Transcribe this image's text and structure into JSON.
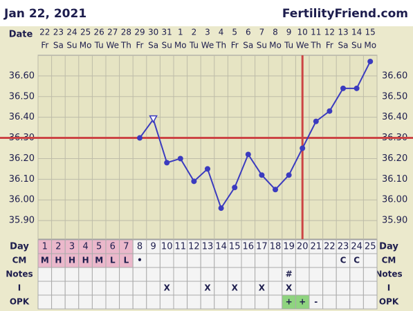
{
  "header": {
    "date": "Jan 22, 2021",
    "site": "FertilityFriend.com"
  },
  "chart_data": {
    "type": "line",
    "date_label": "Date",
    "dates": [
      "22",
      "23",
      "24",
      "25",
      "26",
      "27",
      "28",
      "29",
      "30",
      "31",
      "1",
      "2",
      "3",
      "4",
      "5",
      "6",
      "7",
      "8",
      "9",
      "10",
      "11",
      "12",
      "13",
      "14",
      "15"
    ],
    "weekdays": [
      "Fr",
      "Sa",
      "Su",
      "Mo",
      "Tu",
      "We",
      "Th",
      "Fr",
      "Sa",
      "Su",
      "Mo",
      "Tu",
      "We",
      "Th",
      "Fr",
      "Sa",
      "Su",
      "Mo",
      "Tu",
      "We",
      "Th",
      "Fr",
      "Sa",
      "Su",
      "Mo"
    ],
    "day_label": "Day",
    "categories": [
      "1",
      "2",
      "3",
      "4",
      "5",
      "6",
      "7",
      "8",
      "9",
      "10",
      "11",
      "12",
      "13",
      "14",
      "15",
      "16",
      "17",
      "18",
      "19",
      "20",
      "21",
      "22",
      "23",
      "24",
      "25"
    ],
    "series": [
      {
        "color": "#3b3bbf",
        "values": [
          null,
          null,
          null,
          null,
          null,
          null,
          null,
          36.3,
          36.39,
          36.18,
          36.2,
          36.09,
          36.15,
          35.96,
          36.06,
          36.22,
          36.12,
          36.05,
          36.12,
          36.25,
          36.38,
          36.43,
          36.54,
          36.54,
          36.67
        ],
        "markers": [
          null,
          null,
          null,
          null,
          null,
          null,
          null,
          "circle",
          "triangle",
          "circle",
          "circle",
          "circle",
          "circle",
          "circle",
          "circle",
          "circle",
          "circle",
          "circle",
          "circle",
          "circle",
          "circle",
          "circle",
          "circle",
          "circle",
          "circle"
        ]
      }
    ],
    "ylim": [
      35.81,
      36.7
    ],
    "yticks": [
      {
        "value": 35.9,
        "label": "35.90"
      },
      {
        "value": 36.0,
        "label": "36.00"
      },
      {
        "value": 36.1,
        "label": "36.10"
      },
      {
        "value": 36.2,
        "label": "36.20"
      },
      {
        "value": 36.3,
        "label": "36.30"
      },
      {
        "value": 36.4,
        "label": "36.40"
      },
      {
        "value": 36.5,
        "label": "36.50"
      },
      {
        "value": 36.6,
        "label": "36.60"
      }
    ],
    "grid": true,
    "coverline": 36.3,
    "vertical_line_day": 20,
    "reference_color": "#cc4444",
    "period_days": [
      1,
      2,
      3,
      4,
      5,
      6,
      7
    ],
    "period_color": "#ebb8cb",
    "rows": [
      {
        "label": "CM",
        "values": [
          "M",
          "H",
          "H",
          "H",
          "M",
          "L",
          "L",
          "•",
          null,
          null,
          null,
          null,
          null,
          null,
          null,
          null,
          null,
          null,
          null,
          null,
          null,
          null,
          "C",
          "C",
          null
        ],
        "highlighted": [
          1,
          2,
          3,
          4,
          5,
          6,
          7
        ],
        "highlight_color": "#ebb8cb"
      },
      {
        "label": "Notes",
        "values": [
          null,
          null,
          null,
          null,
          null,
          null,
          null,
          null,
          null,
          null,
          null,
          null,
          null,
          null,
          null,
          null,
          null,
          null,
          "#",
          null,
          null,
          null,
          null,
          null,
          null
        ],
        "highlighted": [],
        "highlight_color": null
      },
      {
        "label": "I",
        "values": [
          null,
          null,
          null,
          null,
          null,
          null,
          null,
          null,
          null,
          "X",
          null,
          null,
          "X",
          null,
          "X",
          null,
          "X",
          null,
          "X",
          null,
          null,
          null,
          null,
          null,
          null
        ],
        "highlighted": [],
        "highlight_color": null
      },
      {
        "label": "OPK",
        "values": [
          null,
          null,
          null,
          null,
          null,
          null,
          null,
          null,
          null,
          null,
          null,
          null,
          null,
          null,
          null,
          null,
          null,
          null,
          "+",
          "+",
          "-",
          null,
          null,
          null,
          null
        ],
        "highlighted": [
          19,
          20
        ],
        "highlight_color": "#8fd47f"
      }
    ]
  }
}
